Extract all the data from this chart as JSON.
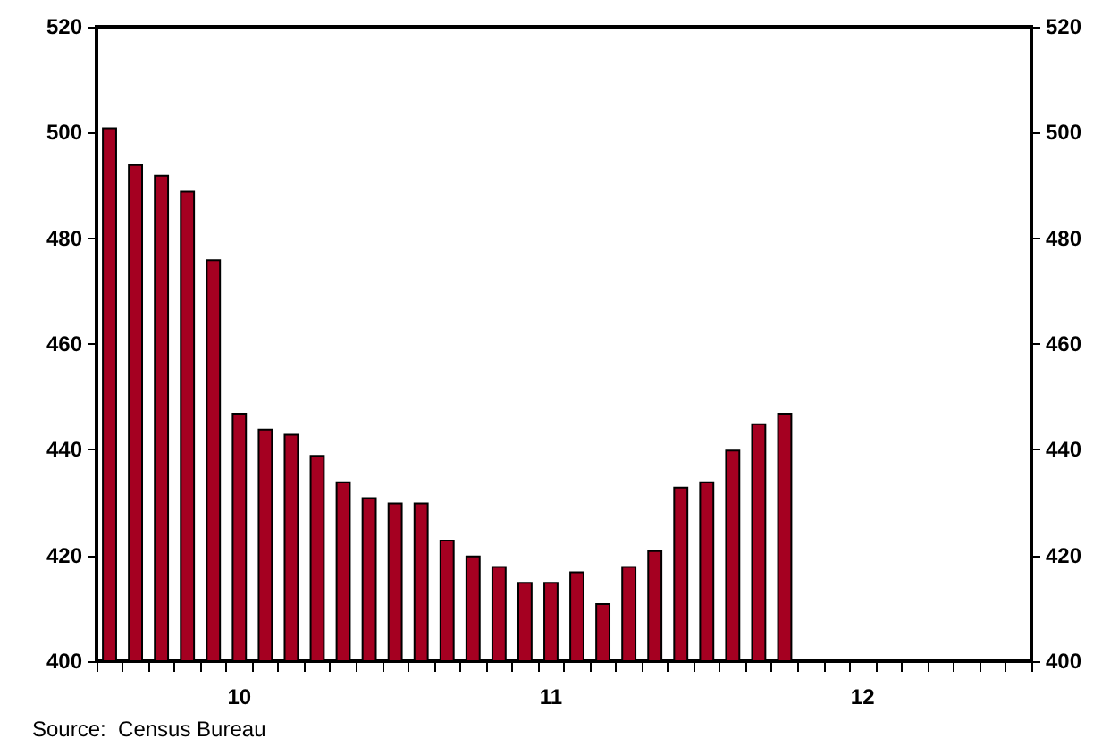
{
  "chart_data": {
    "type": "bar",
    "categories": [
      null,
      null,
      null,
      null,
      null,
      "10",
      null,
      null,
      null,
      null,
      null,
      null,
      null,
      null,
      null,
      null,
      null,
      "11",
      null,
      null,
      null,
      null,
      null,
      null,
      null,
      null,
      null,
      null,
      null,
      "12",
      null,
      null,
      null,
      null,
      null,
      null
    ],
    "values": [
      501,
      494,
      492,
      489,
      476,
      447,
      444,
      443,
      439,
      434,
      431,
      430,
      430,
      423,
      420,
      418,
      415,
      415,
      417,
      411,
      418,
      421,
      433,
      434,
      440,
      445,
      447,
      null,
      null,
      null,
      null,
      null,
      null,
      null,
      null,
      null
    ],
    "color": "#a50021",
    "ylim": [
      400,
      520
    ],
    "yticks": [
      400,
      420,
      440,
      460,
      480,
      500,
      520
    ],
    "y2lim": [
      400,
      520
    ],
    "y2ticks": [
      400,
      420,
      440,
      460,
      480,
      500,
      520
    ],
    "grid": false,
    "annotations": [
      "Source:  Census Bureau"
    ]
  }
}
